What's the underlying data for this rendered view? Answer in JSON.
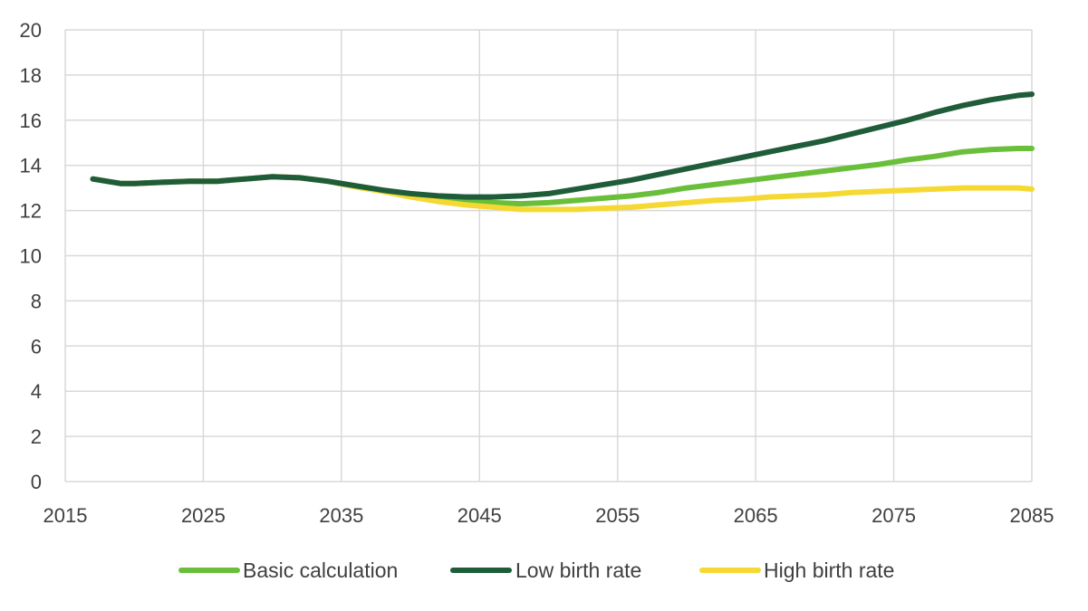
{
  "chart_data": {
    "type": "line",
    "title": "",
    "xlabel": "",
    "ylabel": "",
    "xlim": [
      2015,
      2085
    ],
    "ylim": [
      0,
      20
    ],
    "xticks": [
      2015,
      2025,
      2035,
      2045,
      2055,
      2065,
      2075,
      2085
    ],
    "yticks": [
      0,
      2,
      4,
      6,
      8,
      10,
      12,
      14,
      16,
      18,
      20
    ],
    "grid": true,
    "legend_position": "bottom",
    "series": [
      {
        "name": "Basic calculation",
        "color": "#6abf3a",
        "x": [
          2017,
          2018,
          2019,
          2020,
          2022,
          2024,
          2026,
          2028,
          2030,
          2032,
          2034,
          2036,
          2038,
          2040,
          2042,
          2044,
          2046,
          2048,
          2050,
          2052,
          2054,
          2056,
          2058,
          2060,
          2062,
          2064,
          2066,
          2068,
          2070,
          2072,
          2074,
          2076,
          2078,
          2080,
          2082,
          2084,
          2085
        ],
        "values": [
          13.4,
          13.3,
          13.2,
          13.2,
          13.25,
          13.3,
          13.3,
          13.4,
          13.5,
          13.45,
          13.3,
          13.1,
          12.9,
          12.7,
          12.55,
          12.45,
          12.35,
          12.3,
          12.35,
          12.45,
          12.55,
          12.65,
          12.8,
          13.0,
          13.15,
          13.3,
          13.45,
          13.6,
          13.75,
          13.9,
          14.05,
          14.25,
          14.4,
          14.6,
          14.7,
          14.75,
          14.75
        ]
      },
      {
        "name": "Low birth rate",
        "color": "#1e5c3a",
        "x": [
          2017,
          2018,
          2019,
          2020,
          2022,
          2024,
          2026,
          2028,
          2030,
          2032,
          2034,
          2036,
          2038,
          2040,
          2042,
          2044,
          2046,
          2048,
          2050,
          2052,
          2054,
          2056,
          2058,
          2060,
          2062,
          2064,
          2066,
          2068,
          2070,
          2072,
          2074,
          2076,
          2078,
          2080,
          2082,
          2084,
          2085
        ],
        "values": [
          13.4,
          13.3,
          13.2,
          13.2,
          13.25,
          13.3,
          13.3,
          13.4,
          13.5,
          13.45,
          13.3,
          13.1,
          12.9,
          12.75,
          12.65,
          12.6,
          12.6,
          12.65,
          12.75,
          12.95,
          13.15,
          13.35,
          13.6,
          13.85,
          14.1,
          14.35,
          14.6,
          14.85,
          15.1,
          15.4,
          15.7,
          16.0,
          16.35,
          16.65,
          16.9,
          17.1,
          17.15
        ]
      },
      {
        "name": "High birth rate",
        "color": "#f5d932",
        "x": [
          2017,
          2018,
          2019,
          2020,
          2022,
          2024,
          2026,
          2028,
          2030,
          2032,
          2034,
          2036,
          2038,
          2040,
          2042,
          2044,
          2046,
          2048,
          2050,
          2052,
          2054,
          2056,
          2058,
          2060,
          2062,
          2064,
          2066,
          2068,
          2070,
          2072,
          2074,
          2076,
          2078,
          2080,
          2082,
          2084,
          2085
        ],
        "values": [
          13.4,
          13.3,
          13.2,
          13.2,
          13.25,
          13.3,
          13.3,
          13.4,
          13.5,
          13.45,
          13.3,
          13.05,
          12.85,
          12.6,
          12.4,
          12.25,
          12.15,
          12.05,
          12.05,
          12.05,
          12.1,
          12.15,
          12.25,
          12.35,
          12.45,
          12.5,
          12.6,
          12.65,
          12.7,
          12.8,
          12.85,
          12.9,
          12.95,
          13.0,
          13.0,
          13.0,
          12.95
        ]
      }
    ]
  }
}
